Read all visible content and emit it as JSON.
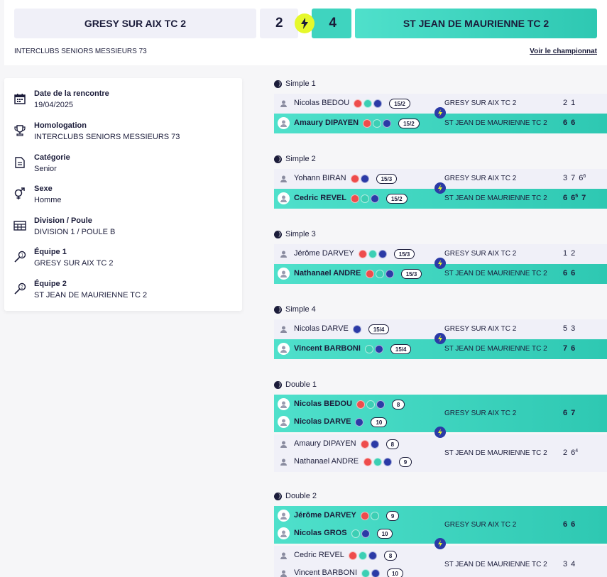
{
  "header": {
    "home_team": "GRESY SUR AIX TC 2",
    "away_team": "ST JEAN DE MAURIENNE TC 2",
    "home_score": "2",
    "away_score": "4",
    "championship": "INTERCLUBS SENIORS MESSIEURS 73",
    "view_link": "Voir le championnat"
  },
  "info": [
    {
      "icon": "calendar-icon",
      "label": "Date de la rencontre",
      "value": "19/04/2025"
    },
    {
      "icon": "trophy-icon",
      "label": "Homologation",
      "value": "INTERCLUBS SENIORS MESSIEURS 73"
    },
    {
      "icon": "document-icon",
      "label": "Catégorie",
      "value": "Senior"
    },
    {
      "icon": "gender-icon",
      "label": "Sexe",
      "value": "Homme"
    },
    {
      "icon": "table-icon",
      "label": "Division / Poule",
      "value": "DIVISION 1 / POULE B"
    },
    {
      "icon": "racket-1-icon",
      "label": "Équipe 1",
      "value": "GRESY SUR AIX TC 2"
    },
    {
      "icon": "racket-2-icon",
      "label": "Équipe 2",
      "value": "ST JEAN DE MAURIENNE TC 2"
    }
  ],
  "singles": [
    {
      "title": "Simple 1",
      "p1": {
        "name": "Nicolas BEDOU",
        "rank": "15/2",
        "team": "GRESY SUR AIX TC 2",
        "s": [
          "2",
          "1"
        ],
        "sup": [
          "",
          ""
        ]
      },
      "p2": {
        "name": "Amaury DIPAYEN",
        "rank": "15/2",
        "team": "ST JEAN DE MAURIENNE TC 2",
        "s": [
          "6",
          "6"
        ],
        "sup": [
          "",
          ""
        ]
      }
    },
    {
      "title": "Simple 2",
      "p1": {
        "name": "Yohann BIRAN",
        "rank": "15/3",
        "team": "GRESY SUR AIX TC 2",
        "s": [
          "3",
          "7",
          "6"
        ],
        "sup": [
          "",
          "",
          "6"
        ]
      },
      "p2": {
        "name": "Cedric REVEL",
        "rank": "15/2",
        "team": "ST JEAN DE MAURIENNE TC 2",
        "s": [
          "6",
          "6",
          "7"
        ],
        "sup": [
          "",
          "5",
          ""
        ]
      }
    },
    {
      "title": "Simple 3",
      "p1": {
        "name": "Jérôme DARVEY",
        "rank": "15/3",
        "team": "GRESY SUR AIX TC 2",
        "s": [
          "1",
          "2"
        ],
        "sup": [
          "",
          ""
        ]
      },
      "p2": {
        "name": "Nathanael ANDRE",
        "rank": "15/3",
        "team": "ST JEAN DE MAURIENNE TC 2",
        "s": [
          "6",
          "6"
        ],
        "sup": [
          "",
          ""
        ]
      }
    },
    {
      "title": "Simple 4",
      "p1": {
        "name": "Nicolas DARVE",
        "rank": "15/4",
        "team": "GRESY SUR AIX TC 2",
        "s": [
          "5",
          "3"
        ],
        "sup": [
          "",
          ""
        ]
      },
      "p2": {
        "name": "Vincent BARBONI",
        "rank": "15/4",
        "team": "ST JEAN DE MAURIENNE TC 2",
        "s": [
          "7",
          "6"
        ],
        "sup": [
          "",
          ""
        ]
      }
    }
  ],
  "doubles": [
    {
      "title": "Double 1",
      "winner": {
        "team": "GRESY SUR AIX TC 2",
        "players": [
          {
            "name": "Nicolas BEDOU",
            "rank": "8"
          },
          {
            "name": "Nicolas DARVE",
            "rank": "10"
          }
        ],
        "s": [
          "6",
          "7"
        ],
        "sup": [
          "",
          ""
        ]
      },
      "loser": {
        "team": "ST JEAN DE MAURIENNE TC 2",
        "players": [
          {
            "name": "Amaury DIPAYEN",
            "rank": "8"
          },
          {
            "name": "Nathanael ANDRE",
            "rank": "9"
          }
        ],
        "s": [
          "2",
          "6"
        ],
        "sup": [
          "",
          "4"
        ]
      }
    },
    {
      "title": "Double 2",
      "winner": {
        "team": "GRESY SUR AIX TC 2",
        "players": [
          {
            "name": "Jérôme DARVEY",
            "rank": "9"
          },
          {
            "name": "Nicolas GROS",
            "rank": "10"
          }
        ],
        "s": [
          "6",
          "6"
        ],
        "sup": [
          "",
          ""
        ]
      },
      "loser": {
        "team": "ST JEAN DE MAURIENNE TC 2",
        "players": [
          {
            "name": "Cedric REVEL",
            "rank": "8"
          },
          {
            "name": "Vincent BARBONI",
            "rank": "10"
          }
        ],
        "s": [
          "3",
          "4"
        ],
        "sup": [
          "",
          ""
        ]
      }
    }
  ],
  "colors": {
    "accent": "#3fd4bf",
    "lose_bg": "#f0f0f8",
    "bolt": "#e6f82b",
    "navy": "#2b3aa6"
  }
}
